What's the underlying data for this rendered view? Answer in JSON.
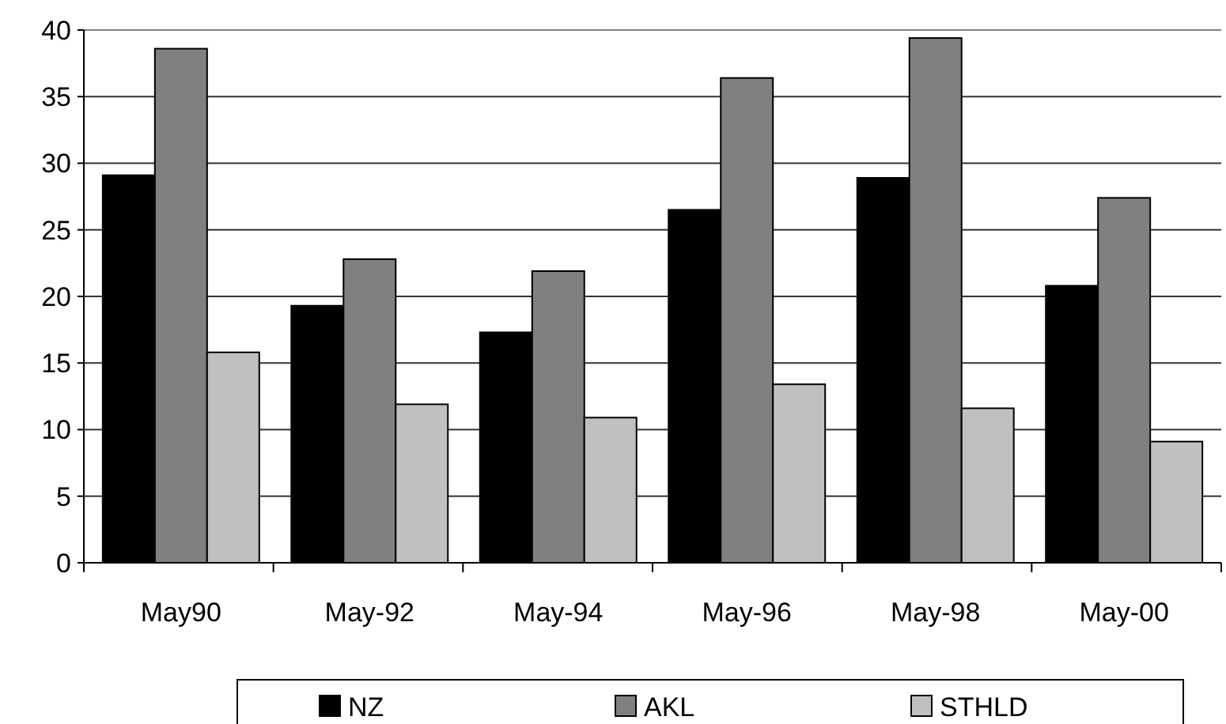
{
  "chart_data": {
    "type": "bar",
    "categories": [
      "May90",
      "May-92",
      "May-94",
      "May-96",
      "May-98",
      "May-00"
    ],
    "series": [
      {
        "name": "NZ",
        "color": "#000000",
        "values": [
          29.1,
          19.3,
          17.3,
          26.5,
          28.9,
          20.8
        ]
      },
      {
        "name": "AKL",
        "color": "#808080",
        "values": [
          38.6,
          22.8,
          21.9,
          36.4,
          39.4,
          27.4
        ]
      },
      {
        "name": "STHLD",
        "color": "#c0c0c0",
        "values": [
          15.8,
          11.9,
          10.9,
          13.4,
          11.6,
          9.1
        ]
      }
    ],
    "ylim": [
      0,
      40
    ],
    "yticks": [
      0,
      5,
      10,
      15,
      20,
      25,
      30,
      35,
      40
    ],
    "grid": "y",
    "legend": "bottom"
  }
}
